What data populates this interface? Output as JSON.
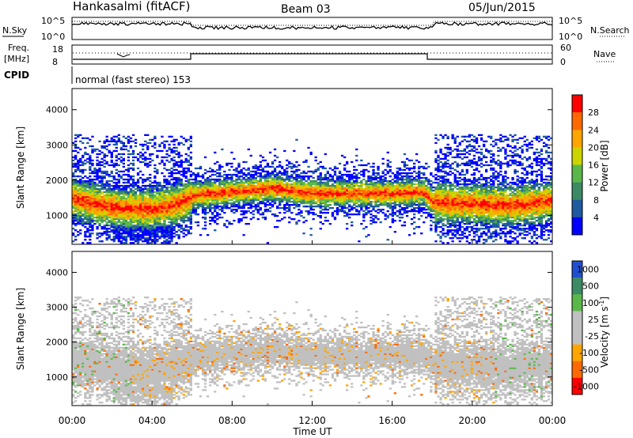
{
  "header": {
    "station": "Hankasalmi (fitACF)",
    "beam": "Beam 03",
    "date": "05/Jun/2015"
  },
  "noise_panel": {
    "left_label": "N.Sky",
    "right_label": "N.Search",
    "ticks": [
      "10^5",
      "10^0"
    ]
  },
  "freq_panel": {
    "left_label_line1": "Freq.",
    "left_label_line2": "[MHz]",
    "left_ticks": [
      "18",
      "8"
    ],
    "right_ticks": [
      "60",
      "0"
    ],
    "right_label": "Nave"
  },
  "cpid_panel": {
    "label": "CPID",
    "mode": "normal (fast stereo) 153"
  },
  "time_axis": {
    "label": "Time UT",
    "ticks": [
      "00:00",
      "04:00",
      "08:00",
      "12:00",
      "16:00",
      "20:00",
      "00:00"
    ]
  },
  "chart_data": [
    {
      "type": "heatmap",
      "name": "power",
      "ylabel": "Slant Range [km]",
      "yticks": [
        "4000",
        "3000",
        "2000",
        "1000"
      ],
      "ylim": [
        180,
        4600
      ],
      "xlim_hours": [
        0,
        24
      ],
      "colorbar": {
        "label": "Power [dB]",
        "ticks": [
          "28",
          "24",
          "20",
          "16",
          "12",
          "8",
          "4"
        ],
        "colors": [
          "#ff0000",
          "#ff6a00",
          "#ffa500",
          "#ccd400",
          "#5ab84a",
          "#3c8a64",
          "#1e5aa0",
          "#0000ff"
        ]
      },
      "echo_band": {
        "hours": [
          0,
          2,
          4,
          5.5,
          6,
          8,
          10,
          12,
          14,
          16,
          17.5,
          18,
          20,
          22,
          24
        ],
        "center_km": [
          1450,
          1200,
          1150,
          1350,
          1550,
          1650,
          1750,
          1600,
          1600,
          1600,
          1650,
          1350,
          1300,
          1250,
          1400
        ]
      }
    },
    {
      "type": "heatmap",
      "name": "velocity",
      "ylabel": "Slant Range [km]",
      "yticks": [
        "4000",
        "3000",
        "2000",
        "1000"
      ],
      "ylim": [
        180,
        4600
      ],
      "xlim_hours": [
        0,
        24
      ],
      "colorbar": {
        "label": "Velocity [m s^-1]",
        "ticks": [
          "1000",
          "500",
          "100",
          "25",
          "-25",
          "-100",
          "-500",
          "-1000"
        ],
        "colors": [
          "#2050d0",
          "#3c8a64",
          "#5ab84a",
          "#c0c0c0",
          "#c0c0c0",
          "#ffa500",
          "#ff6a00",
          "#ff0000"
        ]
      }
    }
  ]
}
